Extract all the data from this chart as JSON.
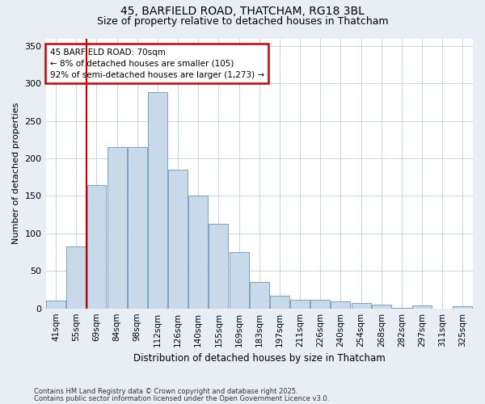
{
  "title_line1": "45, BARFIELD ROAD, THATCHAM, RG18 3BL",
  "title_line2": "Size of property relative to detached houses in Thatcham",
  "xlabel": "Distribution of detached houses by size in Thatcham",
  "ylabel": "Number of detached properties",
  "categories": [
    "41sqm",
    "55sqm",
    "69sqm",
    "84sqm",
    "98sqm",
    "112sqm",
    "126sqm",
    "140sqm",
    "155sqm",
    "169sqm",
    "183sqm",
    "197sqm",
    "211sqm",
    "226sqm",
    "240sqm",
    "254sqm",
    "268sqm",
    "282sqm",
    "297sqm",
    "311sqm",
    "325sqm"
  ],
  "values": [
    10,
    83,
    165,
    215,
    215,
    288,
    185,
    150,
    113,
    75,
    35,
    17,
    12,
    11,
    9,
    7,
    5,
    1,
    4,
    0,
    3
  ],
  "bar_color": "#c8daea",
  "bar_edge_color": "#6699bb",
  "grid_color": "#b0c4d8",
  "annotation_line1": "45 BARFIELD ROAD: 70sqm",
  "annotation_line2": "← 8% of detached houses are smaller (105)",
  "annotation_line3": "92% of semi-detached houses are larger (1,273) →",
  "annotation_box_color": "#ffffff",
  "annotation_box_edge_color": "#cc0000",
  "vline_x": 1.5,
  "vline_color": "#cc0000",
  "ylim": [
    0,
    360
  ],
  "yticks": [
    0,
    50,
    100,
    150,
    200,
    250,
    300,
    350
  ],
  "footnote_line1": "Contains HM Land Registry data © Crown copyright and database right 2025.",
  "footnote_line2": "Contains public sector information licensed under the Open Government Licence v3.0.",
  "bg_color": "#e8eef4",
  "plot_bg_color": "#ffffff"
}
